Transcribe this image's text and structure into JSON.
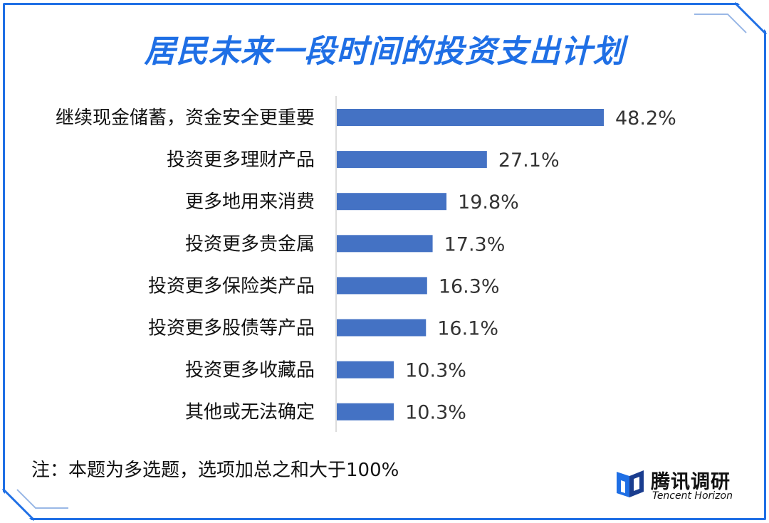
{
  "title": "居民未来一段时间的投资支出计划",
  "note": "注：本题为多选题，选项加总之和大于100%",
  "brand": {
    "name_cn": "腾讯调研",
    "name_en": "Tencent Horizon"
  },
  "colors": {
    "frame": "#1f6fe5",
    "bar": "#4472c4",
    "title": "#1f6fe5"
  },
  "chart_data": {
    "type": "bar",
    "orientation": "horizontal",
    "categories": [
      "继续现金储蓄，资金安全更重要",
      "投资更多理财产品",
      "更多地用来消费",
      "投资更多贵金属",
      "投资更多保险类产品",
      "投资更多股债等产品",
      "投资更多收藏品",
      "其他或无法确定"
    ],
    "values": [
      48.2,
      27.1,
      19.8,
      17.3,
      16.3,
      16.1,
      10.3,
      10.3
    ],
    "value_labels": [
      "48.2%",
      "27.1%",
      "19.8%",
      "17.3%",
      "16.3%",
      "16.1%",
      "10.3%",
      "10.3%"
    ],
    "unit": "%",
    "xlim": [
      0,
      50
    ],
    "grid": false,
    "legend": "none"
  }
}
